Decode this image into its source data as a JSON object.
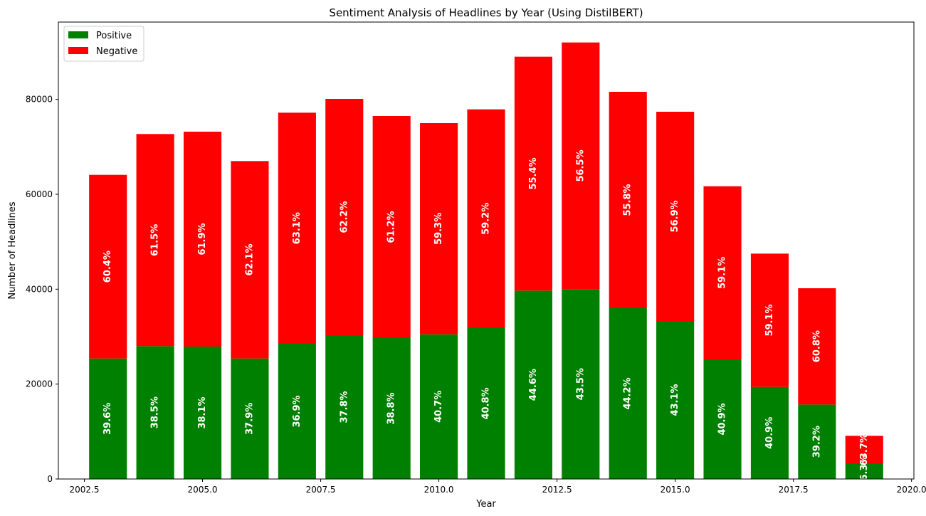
{
  "chart_data": {
    "type": "bar",
    "stacked": true,
    "title": "Sentiment Analysis of Headlines by Year (Using DistilBERT)",
    "xlabel": "Year",
    "ylabel": "Number of Headlines",
    "x": [
      2003,
      2004,
      2005,
      2006,
      2007,
      2008,
      2009,
      2010,
      2011,
      2012,
      2013,
      2014,
      2015,
      2016,
      2017,
      2018,
      2019
    ],
    "xlim": [
      2001.95,
      2020.05
    ],
    "ylim": [
      0,
      96300
    ],
    "xticks": [
      "2002.5",
      "2005.0",
      "2007.5",
      "2010.0",
      "2012.5",
      "2015.0",
      "2017.5",
      "2020.0"
    ],
    "xtick_values": [
      2002.5,
      2005.0,
      2007.5,
      2010.0,
      2012.5,
      2015.0,
      2017.5,
      2020.0
    ],
    "yticks": [
      "0",
      "20000",
      "40000",
      "60000",
      "80000"
    ],
    "ytick_values": [
      0,
      20000,
      40000,
      60000,
      80000
    ],
    "legend_position": "upper left",
    "grid": false,
    "series": [
      {
        "name": "Positive",
        "color": "#008000",
        "values": [
          25400,
          28000,
          27900,
          25400,
          28500,
          30300,
          29700,
          30500,
          31800,
          39700,
          40000,
          36000,
          33300,
          25200,
          19400,
          15700,
          3300
        ],
        "labels": [
          "39.6%",
          "38.5%",
          "38.1%",
          "37.9%",
          "36.9%",
          "37.8%",
          "38.8%",
          "40.7%",
          "40.8%",
          "44.6%",
          "43.5%",
          "44.2%",
          "43.1%",
          "40.9%",
          "40.9%",
          "39.2%",
          "36.3%"
        ]
      },
      {
        "name": "Negative",
        "color": "#ff0000",
        "values": [
          38700,
          44700,
          45300,
          41600,
          48700,
          49800,
          46800,
          44500,
          46100,
          49300,
          52000,
          45600,
          44100,
          36500,
          28100,
          24500,
          5800
        ],
        "labels": [
          "60.4%",
          "61.5%",
          "61.9%",
          "62.1%",
          "63.1%",
          "62.2%",
          "61.2%",
          "59.3%",
          "59.2%",
          "55.4%",
          "56.5%",
          "55.8%",
          "56.9%",
          "59.1%",
          "59.1%",
          "60.8%",
          "63.7%"
        ]
      }
    ]
  }
}
